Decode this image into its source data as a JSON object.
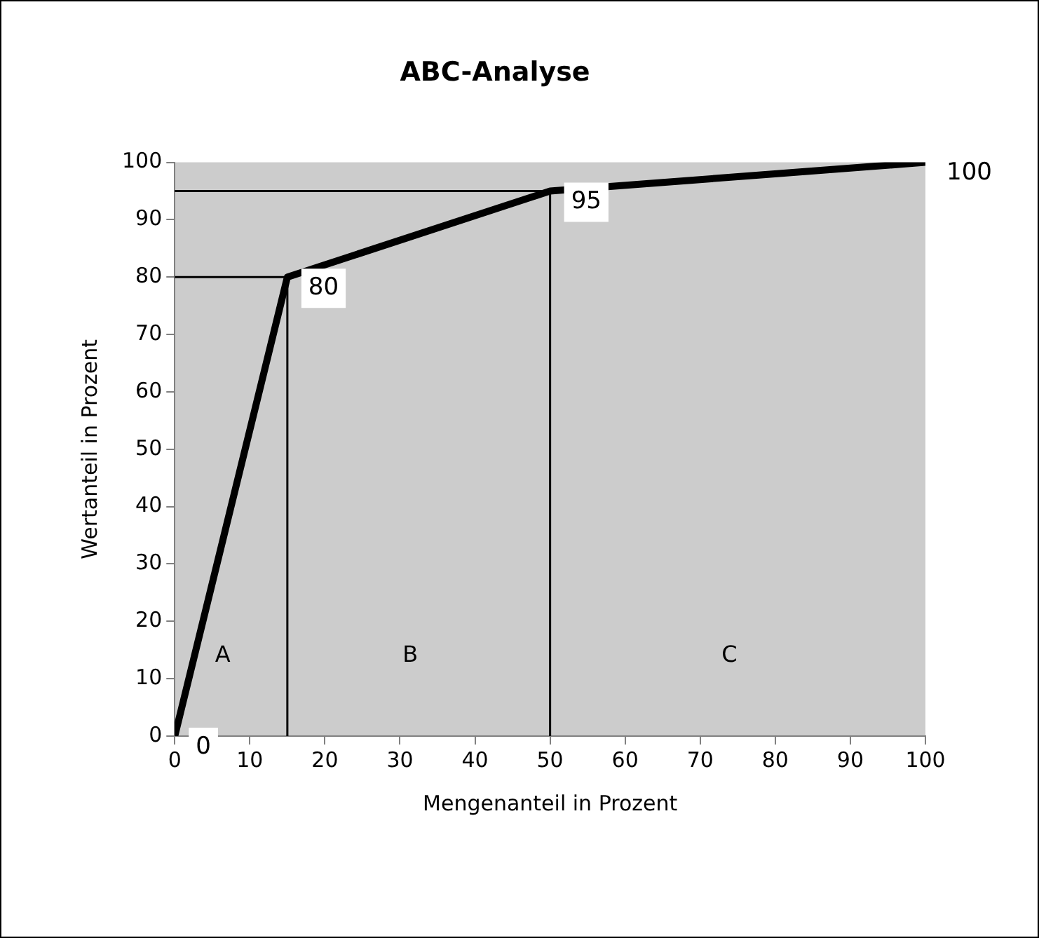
{
  "chart_data": {
    "type": "line",
    "title": "ABC-Analyse",
    "xlabel": "Mengenanteil in Prozent",
    "ylabel": "Wertanteil in Prozent",
    "x": [
      0,
      15,
      50,
      100
    ],
    "series": [
      {
        "color": "#000000",
        "values": [
          0,
          80,
          95,
          100
        ],
        "value_labels": [
          "0",
          "80",
          "95",
          "100"
        ]
      },
      {
        "type": "line",
        "color": "#000000",
        "x": [
          0,
          15,
          15
        ],
        "values": [
          80,
          80,
          0
        ]
      },
      {
        "type": "line",
        "color": "#000000",
        "x": [
          0,
          50,
          50
        ],
        "values": [
          95,
          95,
          0
        ]
      }
    ],
    "xlim": [
      0,
      100
    ],
    "xticks": [
      0,
      10,
      20,
      30,
      40,
      50,
      60,
      70,
      80,
      90,
      100
    ],
    "ylim": [
      0,
      100
    ],
    "yticks": [
      0,
      10,
      20,
      30,
      40,
      50,
      60,
      70,
      80,
      90,
      100
    ],
    "annotations": [
      "A",
      "B",
      "C"
    ],
    "grid": false,
    "legend": false,
    "marker": "none",
    "line_style": "solid"
  }
}
